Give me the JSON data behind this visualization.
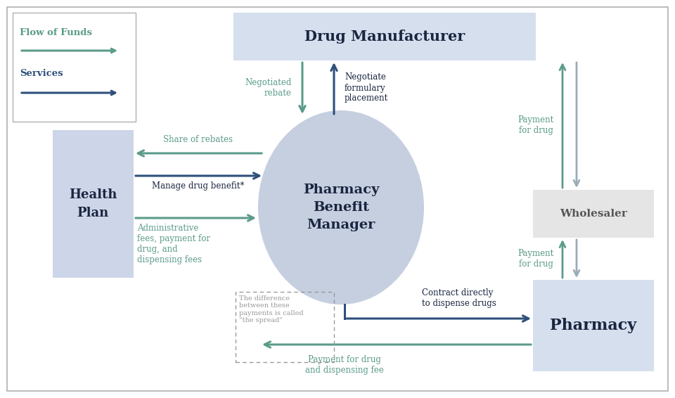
{
  "bg_color": "#ffffff",
  "border_color": "#b0b0b0",
  "flow_funds_color": "#5b9b8a",
  "services_color": "#2e4f7c",
  "green_color": "#5b9b8a",
  "blue_color": "#2e4f7c",
  "gray_color": "#9aabb8",
  "pbm_circle_color": "#c5cfe0",
  "health_plan_color": "#cdd5e8",
  "drug_mfr_color": "#d5dfee",
  "wholesaler_color": "#e5e5e5",
  "pharmacy_color": "#d5dfee",
  "title": "Drug Manufacturer",
  "pbm_label": "Pharmacy\nBenefit\nManager",
  "health_plan_label": "Health\nPlan",
  "wholesaler_label": "Wholesaler",
  "pharmacy_label": "Pharmacy",
  "legend_flow": "Flow of Funds",
  "legend_services": "Services",
  "text_neg_rebate": "Negotiated\nrebate",
  "text_neg_form": "Negotiate\nformulary\nplacement",
  "text_share_rebates": "Share of rebates",
  "text_manage_drug": "Manage drug benefit*",
  "text_admin_fees": "Administrative\nfees, payment for\ndrug, and\ndispensing fees",
  "text_pay_drug1": "Payment\nfor drug",
  "text_pay_drug2": "Payment\nfor drug",
  "text_contract": "Contract directly\nto dispense drugs",
  "text_pay_dispensing": "Payment for drug\nand dispensing fee",
  "text_spread": "The difference\nbetween these\npayments is called\n\"the spread\""
}
